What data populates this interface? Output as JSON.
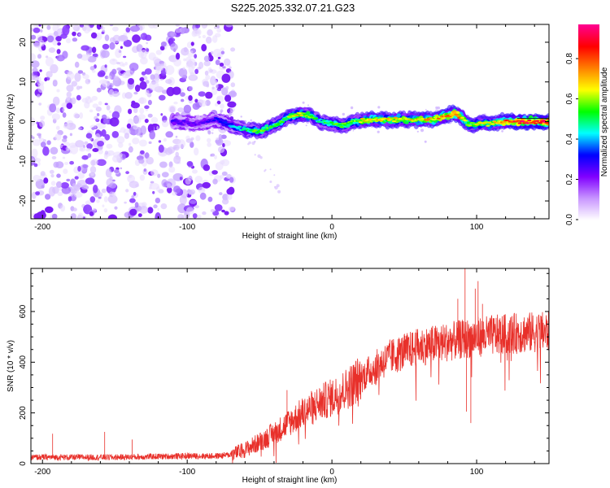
{
  "title": "S225.2025.332.07.21.G23",
  "chart_data": [
    {
      "type": "heatmap",
      "title": "S225.2025.332.07.21.G23",
      "xlabel": "Height of straight line (km)",
      "ylabel": "Frequency (Hz)",
      "xlim": [
        -208,
        150
      ],
      "ylim": [
        -24.5,
        24.5
      ],
      "x_ticks": [
        -200,
        -100,
        0,
        100
      ],
      "x_tick_labels": [
        "-200",
        "-100",
        "0",
        "100"
      ],
      "y_ticks": [
        -20,
        -10,
        0,
        10,
        20
      ],
      "y_tick_labels": [
        "-20",
        "-10",
        "0",
        "10",
        "20"
      ],
      "noise_region_x": [
        -208,
        -72
      ],
      "ridge_frequency": {
        "x": [
          -110,
          -95,
          -80,
          -70,
          -60,
          -50,
          -40,
          -30,
          -22,
          -15,
          -8,
          0,
          8,
          15,
          25,
          40,
          55,
          70,
          80,
          85,
          90,
          95,
          100,
          110,
          120,
          130,
          150
        ],
        "y": [
          0,
          -0.5,
          0.5,
          -1,
          -2,
          -2.5,
          -1,
          1,
          2,
          1.5,
          0,
          -0.5,
          -1,
          0,
          0.5,
          0.5,
          0.5,
          0.5,
          1.5,
          2,
          1,
          -1,
          -0.5,
          -0.5,
          0,
          0,
          0
        ]
      },
      "ridge_amplitude": {
        "x": [
          -110,
          -95,
          -80,
          -70,
          -60,
          -50,
          -40,
          -30,
          -22,
          -15,
          -8,
          0,
          8,
          15,
          25,
          40,
          55,
          70,
          80,
          85,
          90,
          95,
          100,
          110,
          120,
          130,
          150
        ],
        "values": [
          0.3,
          0.25,
          0.3,
          0.4,
          0.5,
          0.6,
          0.55,
          0.6,
          0.7,
          0.6,
          0.5,
          0.55,
          0.6,
          0.6,
          0.75,
          0.7,
          0.7,
          0.75,
          0.8,
          0.85,
          0.75,
          0.6,
          0.65,
          0.7,
          0.8,
          0.9,
          0.95
        ]
      },
      "colorbar": {
        "label": "Normalized spectral amplitude",
        "range": [
          0,
          0.97
        ],
        "ticks": [
          0.0,
          0.2,
          0.4,
          0.6,
          0.8
        ],
        "tick_labels": [
          "0.0",
          "0.2",
          "0.4",
          "0.6",
          "0.8"
        ],
        "colors": [
          "#ffffff",
          "#c896ff",
          "#8000ff",
          "#0000ff",
          "#00ffff",
          "#00ff00",
          "#ffff00",
          "#ff8000",
          "#ff0000",
          "#ff0090"
        ]
      }
    },
    {
      "type": "line",
      "xlabel": "Height of straight line (km)",
      "ylabel": "SNR (10 * v/v)",
      "xlim": [
        -208,
        150
      ],
      "ylim": [
        0,
        770
      ],
      "x_ticks": [
        -200,
        -100,
        0,
        100
      ],
      "x_tick_labels": [
        "-200",
        "-100",
        "0",
        "100"
      ],
      "y_ticks": [
        0,
        200,
        400,
        600
      ],
      "y_tick_labels": [
        "0",
        "200",
        "400",
        "600"
      ],
      "series": [
        {
          "name": "SNR",
          "color": "#e8302a",
          "trend": {
            "x": [
              -208,
              -150,
              -100,
              -80,
              -70,
              -60,
              -50,
              -40,
              -30,
              -20,
              -10,
              0,
              10,
              20,
              30,
              40,
              50,
              60,
              70,
              80,
              90,
              100,
              110,
              120,
              130,
              150
            ],
            "y": [
              25,
              25,
              30,
              30,
              35,
              55,
              85,
              120,
              160,
              200,
              235,
              260,
              295,
              340,
              380,
              420,
              440,
              460,
              470,
              480,
              490,
              500,
              505,
              510,
              515,
              520
            ]
          },
          "spikes": [
            {
              "x": -193,
              "y": 118
            },
            {
              "x": -157,
              "y": 125
            },
            {
              "x": -138,
              "y": 95
            },
            {
              "x": -31,
              "y": 290
            },
            {
              "x": 82,
              "y": 520
            },
            {
              "x": 87,
              "y": 650
            },
            {
              "x": 92,
              "y": 775
            },
            {
              "x": 93,
              "y": 205
            },
            {
              "x": 96,
              "y": 160
            },
            {
              "x": 99,
              "y": 690
            },
            {
              "x": 101,
              "y": 720
            },
            {
              "x": 104,
              "y": 630
            }
          ]
        }
      ]
    }
  ]
}
